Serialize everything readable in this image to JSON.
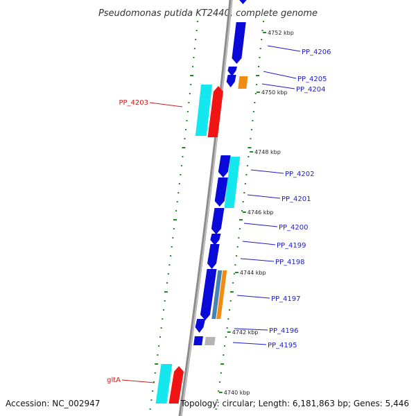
{
  "title": "Pseudomonas putida KT2440, complete genome",
  "accession": "Accession: NC_002947",
  "topology": "Topology: circular; Length: 6,181,863 bp; Genes: 5,446",
  "colors": {
    "backbone": "#8c8c8c",
    "tick_dots": "#1e8a1e",
    "forward_gene": "#0a0ad8",
    "cds_cyan": "#14e8ee",
    "rrna_orange": "#f08c14",
    "pseudo_gray": "#b4b4b4",
    "trna_steel": "#4682b4",
    "highlight_red": "#f01414",
    "label_blue": "#1a1acc",
    "label_red": "#cc1a1a"
  },
  "kbp_labels": [
    "4752 kbp",
    "4750 kbp",
    "4748 kbp",
    "4746 kbp",
    "4744 kbp",
    "4742 kbp",
    "4740 kbp"
  ],
  "genes_right": [
    "PP_4206",
    "PP_4205",
    "PP_4204",
    "PP_4202",
    "PP_4201",
    "PP_4200",
    "PP_4199",
    "PP_4198",
    "PP_4197",
    "PP_4196",
    "PP_4195"
  ],
  "genes_left": [
    "PP_4203",
    "gltA"
  ]
}
